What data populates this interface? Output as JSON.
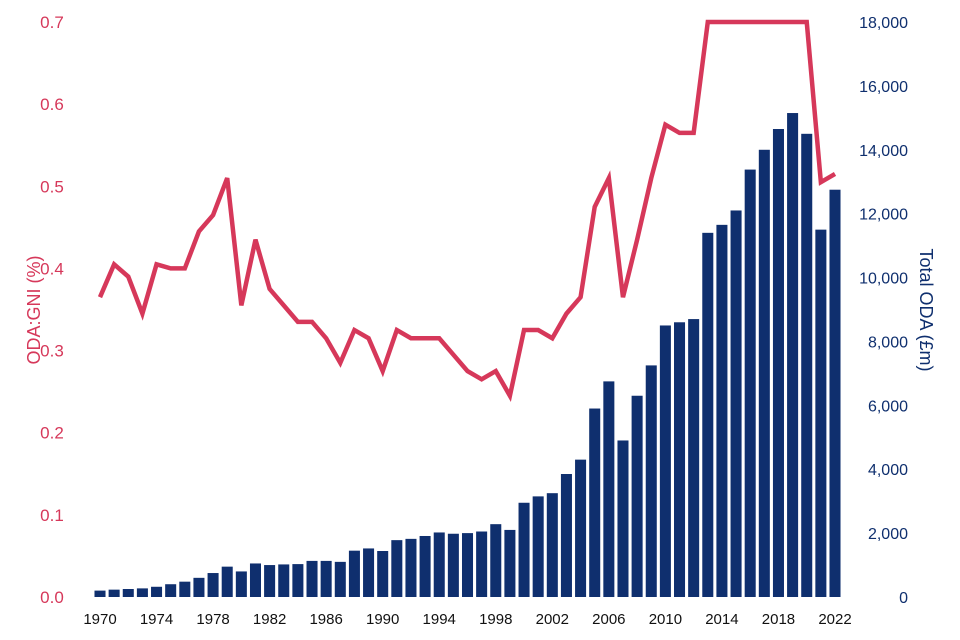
{
  "chart_data": {
    "type": "bar+line",
    "x": [
      1970,
      1971,
      1972,
      1973,
      1974,
      1975,
      1976,
      1977,
      1978,
      1979,
      1980,
      1981,
      1982,
      1983,
      1984,
      1985,
      1986,
      1987,
      1988,
      1989,
      1990,
      1991,
      1992,
      1993,
      1994,
      1995,
      1996,
      1997,
      1998,
      1999,
      2000,
      2001,
      2002,
      2003,
      2004,
      2005,
      2006,
      2007,
      2008,
      2009,
      2010,
      2011,
      2012,
      2013,
      2014,
      2015,
      2016,
      2017,
      2018,
      2019,
      2020,
      2021,
      2022
    ],
    "x_tick_labels": [
      "1970",
      "1974",
      "1978",
      "1982",
      "1986",
      "1990",
      "1994",
      "1998",
      "2002",
      "2006",
      "2010",
      "2014",
      "2018",
      "2022"
    ],
    "series": [
      {
        "axis": "right",
        "kind": "bar",
        "color": "#0f2f6e",
        "values": [
          200,
          230,
          250,
          270,
          320,
          400,
          480,
          600,
          750,
          950,
          800,
          1050,
          1000,
          1020,
          1030,
          1130,
          1130,
          1100,
          1450,
          1520,
          1440,
          1780,
          1820,
          1910,
          2020,
          1980,
          2000,
          2050,
          2280,
          2100,
          2950,
          3150,
          3250,
          3850,
          4300,
          5900,
          6750,
          4900,
          6300,
          7250,
          8500,
          8600,
          8700,
          11400,
          11650,
          12100,
          13380,
          14000,
          14650,
          15150,
          14500,
          11500,
          12750
        ]
      },
      {
        "axis": "left",
        "kind": "line",
        "color": "#d6385a",
        "values": [
          0.365,
          0.405,
          0.39,
          0.345,
          0.405,
          0.4,
          0.4,
          0.445,
          0.465,
          0.51,
          0.355,
          0.435,
          0.375,
          0.355,
          0.335,
          0.335,
          0.315,
          0.285,
          0.325,
          0.315,
          0.275,
          0.325,
          0.315,
          0.315,
          0.315,
          0.295,
          0.275,
          0.265,
          0.275,
          0.245,
          0.325,
          0.325,
          0.315,
          0.345,
          0.365,
          0.475,
          0.51,
          0.365,
          0.435,
          0.51,
          0.575,
          0.565,
          0.565,
          0.7,
          0.7,
          0.7,
          0.7,
          0.7,
          0.7,
          0.7,
          0.7,
          0.505,
          0.515
        ]
      }
    ],
    "left_axis": {
      "label": "ODA:GNI (%)",
      "ylim": [
        0,
        0.7
      ],
      "ticks": [
        "0.0",
        "0.1",
        "0.2",
        "0.3",
        "0.4",
        "0.5",
        "0.6",
        "0.7"
      ]
    },
    "right_axis": {
      "label": "Total ODA (£m)",
      "ylim": [
        0,
        18000
      ],
      "ticks": [
        "0",
        "2,000",
        "4,000",
        "6,000",
        "8,000",
        "10,000",
        "12,000",
        "14,000",
        "16,000",
        "18,000"
      ]
    },
    "grid": false,
    "legend": "none"
  }
}
